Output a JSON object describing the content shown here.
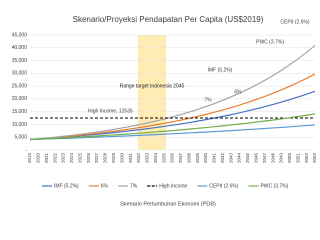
{
  "chart_data": {
    "type": "line",
    "title": "Skenario/Proyeksi Pendapatan Per Capita (US$2019)",
    "x_label": "Skenario Pertumbuhan Ekonomi (PDB)",
    "categories": [
      "2019",
      "2020",
      "2021",
      "2022",
      "2023",
      "2024",
      "2025",
      "2026",
      "2027",
      "2028",
      "2029",
      "2030",
      "2031",
      "2032",
      "2033",
      "2034",
      "2035",
      "2036",
      "2037",
      "2038",
      "2039",
      "2040",
      "2041",
      "2042",
      "2043",
      "2044",
      "2045",
      "2046",
      "2047",
      "2048",
      "2049",
      "2050",
      "2051",
      "2052",
      "2053"
    ],
    "ylim": [
      0,
      45000
    ],
    "yticks": [
      {
        "value": 0,
        "label": "-"
      },
      {
        "value": 5000,
        "label": "5,000"
      },
      {
        "value": 10000,
        "label": "10,000"
      },
      {
        "value": 15000,
        "label": "15,000"
      },
      {
        "value": 20000,
        "label": "20,000"
      },
      {
        "value": 25000,
        "label": "25,000"
      },
      {
        "value": 30000,
        "label": "30,000"
      },
      {
        "value": 35000,
        "label": "35,000"
      },
      {
        "value": 40000,
        "label": "40,000"
      },
      {
        "value": 45000,
        "label": "45,000"
      }
    ],
    "grid": true,
    "annotations": [
      "Range target Indonesia 2045",
      "High Income, 12535",
      "IMF (5.2%)",
      "6%",
      "7%",
      "PWC (3.7%)",
      "CEPII (2.6%)"
    ],
    "series": [
      {
        "name": "IMF (5.2%)",
        "color": "#4472c4",
        "values": [
          4100,
          4310,
          4540,
          4770,
          5020,
          5280,
          5560,
          5850,
          6150,
          6470,
          6810,
          7160,
          7530,
          7930,
          8340,
          8770,
          9230,
          9700,
          10210,
          10740,
          11300,
          11890,
          12510,
          13160,
          13840,
          14560,
          15320,
          16110,
          16950,
          17840,
          18760,
          19740,
          20760,
          21840,
          22980
        ]
      },
      {
        "name": "6%",
        "color": "#ed7d31",
        "values": [
          4100,
          4350,
          4610,
          4880,
          5170,
          5490,
          5820,
          6170,
          6540,
          6920,
          7340,
          7780,
          8250,
          8750,
          9270,
          9830,
          10410,
          11040,
          11700,
          12410,
          13150,
          13940,
          14780,
          15660,
          16600,
          17600,
          18650,
          19770,
          20960,
          22210,
          23550,
          24960,
          26460,
          28050,
          29730
        ]
      },
      {
        "name": "7%",
        "color": "#a5a5a5",
        "values": [
          4100,
          4390,
          4690,
          5020,
          5370,
          5750,
          6150,
          6580,
          7040,
          7540,
          8060,
          8630,
          9230,
          9880,
          10570,
          11310,
          12100,
          12950,
          13860,
          14830,
          15870,
          16980,
          18160,
          19440,
          20800,
          22250,
          23810,
          25480,
          27260,
          29170,
          31210,
          33390,
          35730,
          38230,
          40910
        ]
      },
      {
        "name": "High Income",
        "color": "#000000",
        "dashed": true,
        "values": [
          12535,
          12535,
          12535,
          12535,
          12535,
          12535,
          12535,
          12535,
          12535,
          12535,
          12535,
          12535,
          12535,
          12535,
          12535,
          12535,
          12535,
          12535,
          12535,
          12535,
          12535,
          12535,
          12535,
          12535,
          12535,
          12535,
          12535,
          12535,
          12535,
          12535,
          12535,
          12535,
          12535,
          12535,
          12535
        ]
      },
      {
        "name": "CEPII (2.6%)",
        "color": "#5b9bd5",
        "values": [
          4100,
          4210,
          4320,
          4430,
          4540,
          4660,
          4780,
          4910,
          5030,
          5170,
          5300,
          5440,
          5580,
          5720,
          5870,
          6020,
          6180,
          6340,
          6510,
          6670,
          6850,
          7030,
          7210,
          7400,
          7590,
          7790,
          7990,
          8200,
          8410,
          8630,
          8850,
          9080,
          9320,
          9560,
          9810
        ]
      },
      {
        "name": "PWC (3.7%)",
        "color": "#70ad47",
        "values": [
          4100,
          4250,
          4410,
          4570,
          4740,
          4920,
          5100,
          5290,
          5480,
          5690,
          5900,
          6110,
          6340,
          6580,
          6820,
          7070,
          7330,
          7600,
          7880,
          8180,
          8480,
          8790,
          9120,
          9450,
          9800,
          10170,
          10540,
          10930,
          11340,
          11750,
          12190,
          12640,
          13110,
          13600,
          14100
        ]
      }
    ]
  }
}
